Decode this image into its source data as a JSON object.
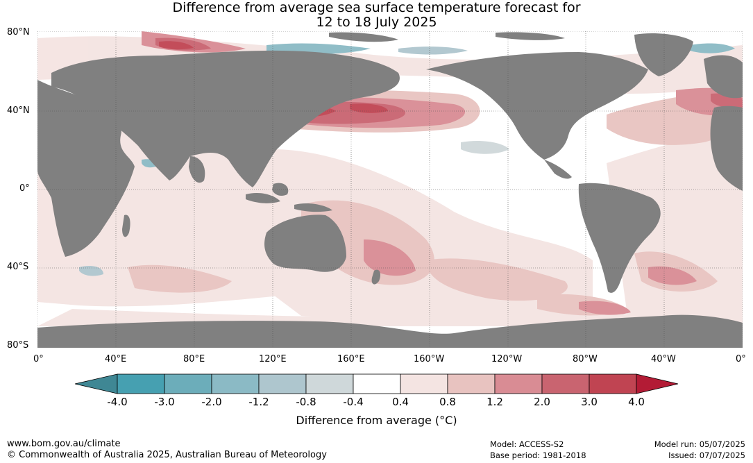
{
  "title": {
    "line1": "Difference from average sea surface temperature forecast for",
    "line2": "12 to 18 July 2025"
  },
  "map": {
    "lat_labels": [
      "80°N",
      "40°N",
      "0°",
      "40°S",
      "80°S"
    ],
    "lon_labels": [
      "0°",
      "40°E",
      "80°E",
      "120°E",
      "160°E",
      "160°W",
      "120°W",
      "80°W",
      "40°W",
      "0°"
    ],
    "land_color": "#808080",
    "ocean_color": "#ffffff"
  },
  "colorbar": {
    "ticks": [
      "-4.0",
      "-3.0",
      "-2.0",
      "-1.2",
      "-0.8",
      "-0.4",
      "0.4",
      "0.8",
      "1.2",
      "2.0",
      "3.0",
      "4.0"
    ],
    "colors": [
      "#46a0b1",
      "#6cadba",
      "#8bbac5",
      "#aec6ce",
      "#cfd8da",
      "#ffffff",
      "#f4e4e2",
      "#e8c3c0",
      "#d98c94",
      "#c96470",
      "#c04452"
    ],
    "under_color": "#3f8794",
    "over_color": "#b31b35",
    "label": "Difference from average (°C)"
  },
  "footer": {
    "url": "www.bom.gov.au/climate",
    "copyright": "© Commonwealth of Australia 2025, Australian Bureau of Meteorology",
    "model": "Model: ACCESS-S2",
    "base_period": "Base period: 1981-2018",
    "model_run": "Model run: 05/07/2025",
    "issued": "Issued: 07/07/2025"
  }
}
